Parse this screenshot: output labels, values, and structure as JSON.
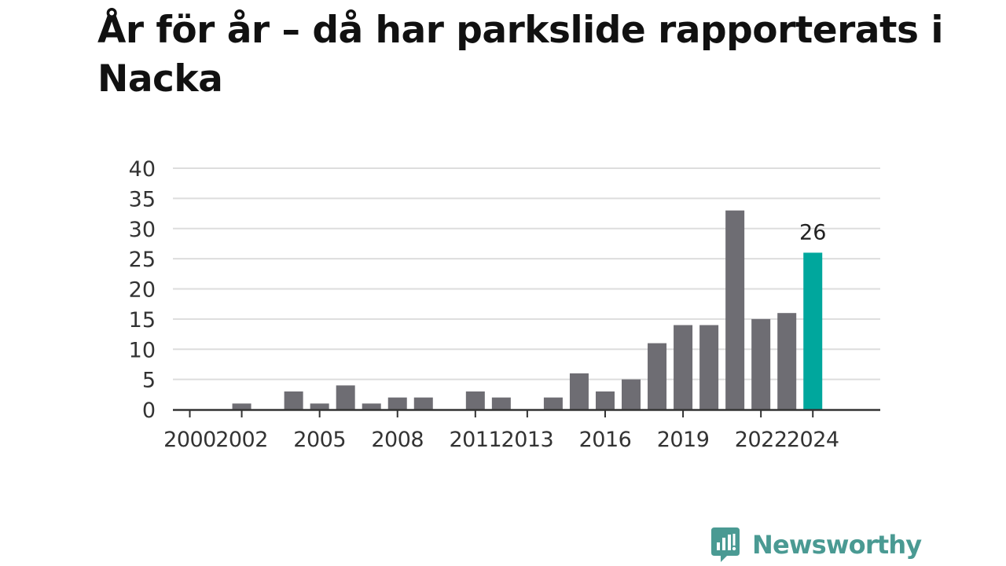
{
  "title": "År för år – då har parkslide rapporterats i Nacka",
  "brand": {
    "name": "Newsworthy",
    "icon": "newsworthy-logo-icon",
    "color": "#4a9a93"
  },
  "colors": {
    "bar": "#6e6d73",
    "highlight": "#00a79d",
    "grid": "#dddddd",
    "axis": "#333333"
  },
  "chart_data": {
    "type": "bar",
    "title": "År för år – då har parkslide rapporterats i Nacka",
    "xlabel": "",
    "ylabel": "",
    "ylim": [
      0,
      40
    ],
    "yticks": [
      0,
      5,
      10,
      15,
      20,
      25,
      30,
      35,
      40
    ],
    "grid": true,
    "categories": [
      "2000",
      "2001",
      "2002",
      "2003",
      "2004",
      "2005",
      "2006",
      "2007",
      "2008",
      "2009",
      "2010",
      "2011",
      "2012",
      "2013",
      "2014",
      "2015",
      "2016",
      "2017",
      "2018",
      "2019",
      "2020",
      "2021",
      "2022",
      "2023",
      "2024"
    ],
    "values": [
      0,
      0,
      1,
      0,
      3,
      1,
      4,
      1,
      2,
      2,
      0,
      3,
      2,
      0,
      2,
      6,
      3,
      5,
      11,
      14,
      14,
      33,
      15,
      16,
      26
    ],
    "xtick_labels": [
      "2000",
      "2002",
      "2005",
      "2008",
      "2011",
      "2013",
      "2016",
      "2019",
      "2022",
      "2024"
    ],
    "highlight": {
      "category": "2024",
      "label": "26"
    }
  }
}
